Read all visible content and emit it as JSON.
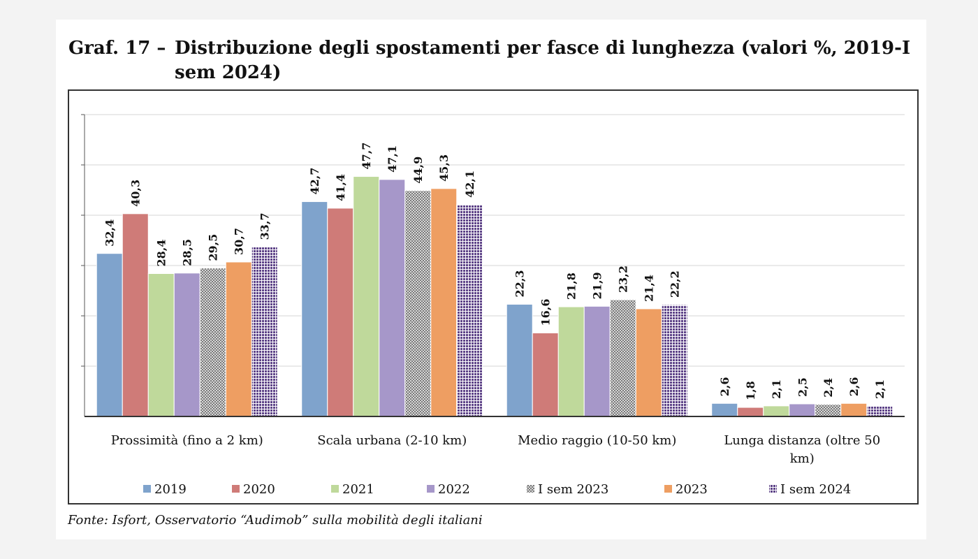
{
  "title": {
    "number": "Graf. 17 –",
    "text": "Distribuzione degli spostamenti per fasce di lunghezza (valori %, 2019-I sem 2024)"
  },
  "source": "Fonte: Isfort, Osservatorio “Audimob” sulla mobilità degli italiani",
  "chart_data": {
    "type": "bar",
    "title": "Distribuzione degli spostamenti per fasce di lunghezza (valori %, 2019-I sem 2024)",
    "categories": [
      "Prossimità (fino a 2 km)",
      "Scala urbana (2-10 km)",
      "Medio raggio (10-50 km)",
      "Lunga distanza (oltre 50 km)"
    ],
    "category_lines": [
      [
        "Prossimità (fino a 2 km)"
      ],
      [
        "Scala urbana (2-10 km)"
      ],
      [
        "Medio raggio (10-50 km)"
      ],
      [
        "Lunga distanza (oltre 50",
        "km)"
      ]
    ],
    "ylim": [
      0,
      60
    ],
    "y_gridlines": [
      10,
      20,
      30,
      40,
      50,
      60
    ],
    "y_tick_labels_shown": false,
    "grid": true,
    "legend_position": "bottom",
    "series": [
      {
        "name": "2019",
        "color": "#7fa3cc",
        "pattern": "solid",
        "values": [
          32.4,
          42.7,
          22.3,
          2.6
        ],
        "labels": [
          "32,4",
          "42,7",
          "22,3",
          "2,6"
        ]
      },
      {
        "name": "2020",
        "color": "#cf7b78",
        "pattern": "solid",
        "values": [
          40.3,
          41.4,
          16.6,
          1.8
        ],
        "labels": [
          "40,3",
          "41,4",
          "16,6",
          "1,8"
        ]
      },
      {
        "name": "2021",
        "color": "#bfd99b",
        "pattern": "solid",
        "values": [
          28.4,
          47.7,
          21.8,
          2.1
        ],
        "labels": [
          "28,4",
          "47,7",
          "21,8",
          "2,1"
        ]
      },
      {
        "name": "2022",
        "color": "#a697c9",
        "pattern": "solid",
        "values": [
          28.5,
          47.1,
          21.9,
          2.5
        ],
        "labels": [
          "28,5",
          "47,1",
          "21,9",
          "2,5"
        ]
      },
      {
        "name": "I sem 2023",
        "color": "#9a9a9a",
        "pattern": "checker",
        "values": [
          29.5,
          44.9,
          23.2,
          2.4
        ],
        "labels": [
          "29,5",
          "44,9",
          "23,2",
          "2,4"
        ]
      },
      {
        "name": "2023",
        "color": "#ee9e62",
        "pattern": "solid",
        "values": [
          30.7,
          45.3,
          21.4,
          2.6
        ],
        "labels": [
          "30,7",
          "45,3",
          "21,4",
          "2,6"
        ]
      },
      {
        "name": "I sem 2024",
        "color": "#6a4f95",
        "pattern": "dots",
        "values": [
          33.7,
          42.1,
          22.2,
          2.1
        ],
        "labels": [
          "33,7",
          "42,1",
          "22,2",
          "2,1"
        ]
      }
    ]
  }
}
